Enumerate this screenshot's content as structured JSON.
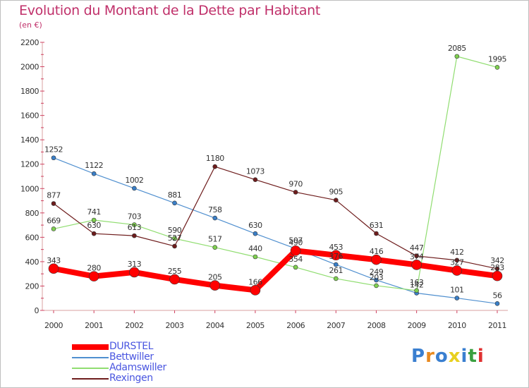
{
  "title": "Evolution du Montant de la Dette par Habitant",
  "unit_label": "(en €)",
  "logo_text": "Proxiti",
  "chart_data": {
    "type": "line",
    "x": [
      "2000",
      "2001",
      "2002",
      "2003",
      "2004",
      "2005",
      "2006",
      "2007",
      "2008",
      "2009",
      "2010",
      "2011"
    ],
    "ylim": [
      0,
      2200
    ],
    "yticks": [
      0,
      200,
      400,
      600,
      800,
      1000,
      1200,
      1400,
      1600,
      1800,
      2000,
      2200
    ],
    "grid": false,
    "legend_position": "bottom-left",
    "series": [
      {
        "name": "Bettwiller",
        "color": "#4f8fcf",
        "values": [
          1252,
          1122,
          1002,
          881,
          758,
          630,
          507,
          376,
          249,
          142,
          101,
          56
        ]
      },
      {
        "name": "Adamswiller",
        "color": "#90dd70",
        "values": [
          669,
          741,
          703,
          590,
          517,
          440,
          354,
          261,
          203,
          163,
          2085,
          1995
        ]
      },
      {
        "name": "Rexingen",
        "color": "#6e1c1c",
        "values": [
          877,
          630,
          613,
          527,
          1180,
          1073,
          970,
          905,
          631,
          447,
          412,
          342
        ]
      },
      {
        "name": "DURSTEL",
        "color": "#ff0000",
        "values": [
          343,
          280,
          313,
          255,
          205,
          166,
          490,
          453,
          416,
          374,
          327,
          283
        ]
      }
    ]
  }
}
